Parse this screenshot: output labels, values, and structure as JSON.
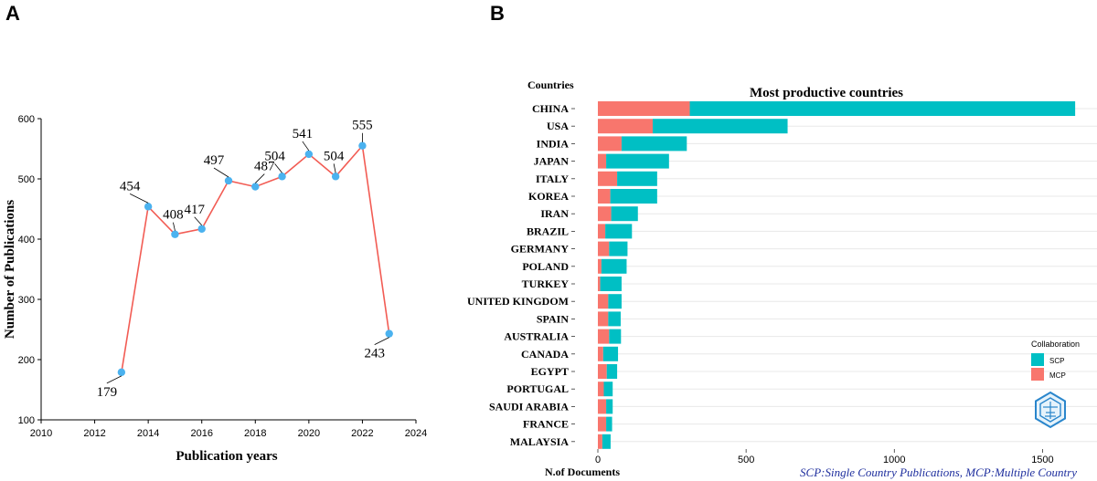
{
  "panels": {
    "a": "A",
    "b": "B"
  },
  "chart_data": [
    {
      "type": "line",
      "panel": "A",
      "title": "",
      "xlabel": "Publication years",
      "ylabel": "Number of Publications",
      "xlim": [
        2010,
        2024
      ],
      "ylim": [
        100,
        600
      ],
      "xticks": [
        2010,
        2012,
        2014,
        2016,
        2018,
        2020,
        2022,
        2024
      ],
      "yticks": [
        100,
        200,
        300,
        400,
        500,
        600
      ],
      "x": [
        2013,
        2014,
        2015,
        2016,
        2017,
        2018,
        2019,
        2020,
        2021,
        2022,
        2023
      ],
      "y": [
        179,
        454,
        408,
        417,
        497,
        487,
        504,
        541,
        504,
        555,
        243
      ],
      "line_color": "#f25c54",
      "marker_color": "#4bb2ef"
    },
    {
      "type": "bar",
      "orientation": "horizontal",
      "stacked": true,
      "panel": "B",
      "title": "Most productive countries",
      "y_header": "Countries",
      "xlabel": "N.of Documents",
      "xticks": [
        0,
        500,
        1000,
        1500
      ],
      "xlim": [
        0,
        1620
      ],
      "categories": [
        "CHINA",
        "USA",
        "INDIA",
        "JAPAN",
        "ITALY",
        "KOREA",
        "IRAN",
        "BRAZIL",
        "GERMANY",
        "POLAND",
        "TURKEY",
        "UNITED KINGDOM",
        "SPAIN",
        "AUSTRALIA",
        "CANADA",
        "EGYPT",
        "PORTUGAL",
        "SAUDI ARABIA",
        "FRANCE",
        "MALAYSIA"
      ],
      "series": [
        {
          "name": "MCP",
          "color": "#f8766d",
          "values": [
            310,
            185,
            80,
            28,
            65,
            42,
            45,
            25,
            38,
            12,
            8,
            35,
            35,
            38,
            18,
            30,
            20,
            28,
            28,
            15
          ]
        },
        {
          "name": "SCP",
          "color": "#00bfc4",
          "values": [
            1300,
            455,
            220,
            212,
            135,
            158,
            90,
            90,
            62,
            85,
            72,
            45,
            42,
            40,
            50,
            35,
            30,
            22,
            20,
            28
          ]
        }
      ],
      "legend": {
        "title": "Collaboration",
        "position": "right",
        "entries": [
          "SCP",
          "MCP"
        ]
      },
      "footnote": "SCP:Single Country Publications, MCP:Multiple Country"
    }
  ]
}
